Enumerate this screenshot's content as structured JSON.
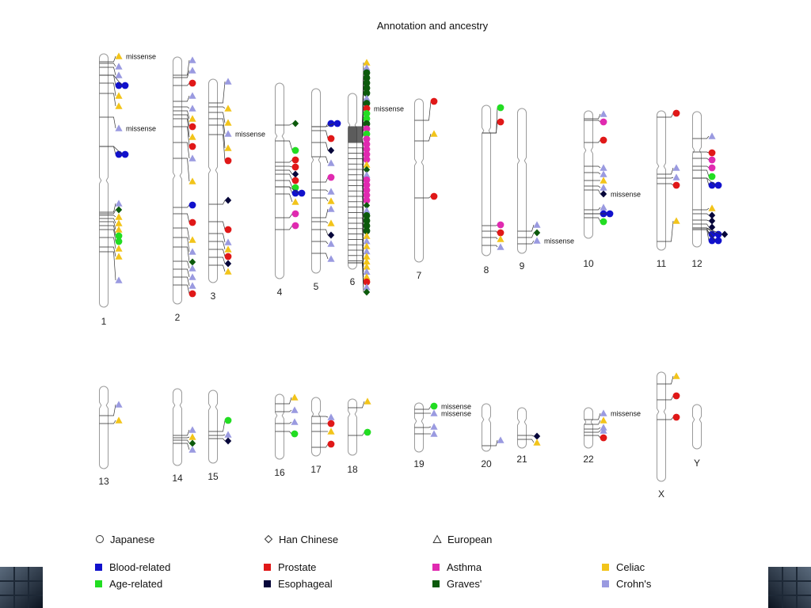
{
  "title": "Annotation and ancestry",
  "colors": {
    "blood": "#1111cc",
    "age": "#22dd22",
    "prostate": "#e01818",
    "esophageal": "#06063a",
    "asthma": "#e02ab0",
    "graves": "#0c5a0c",
    "celiac": "#f2c41a",
    "crohns": "#9a9ae0"
  },
  "annotation_text": "missense",
  "chromosomes": [
    {
      "label": "1"
    },
    {
      "label": "2"
    },
    {
      "label": "3"
    },
    {
      "label": "4"
    },
    {
      "label": "5"
    },
    {
      "label": "6"
    },
    {
      "label": "7"
    },
    {
      "label": "8"
    },
    {
      "label": "9"
    },
    {
      "label": "10"
    },
    {
      "label": "11"
    },
    {
      "label": "12"
    },
    {
      "label": "13"
    },
    {
      "label": "14"
    },
    {
      "label": "15"
    },
    {
      "label": "16"
    },
    {
      "label": "17"
    },
    {
      "label": "18"
    },
    {
      "label": "19"
    },
    {
      "label": "20"
    },
    {
      "label": "21"
    },
    {
      "label": "22"
    },
    {
      "label": "X"
    },
    {
      "label": "Y"
    }
  ],
  "legend": {
    "ancestry": [
      {
        "label": "Japanese",
        "shape": "circle"
      },
      {
        "label": "Han Chinese",
        "shape": "diamond"
      },
      {
        "label": "European",
        "shape": "triangle"
      }
    ],
    "traits": [
      {
        "label": "Blood-related",
        "color": "blood"
      },
      {
        "label": "Age-related",
        "color": "age"
      },
      {
        "label": "Prostate",
        "color": "prostate"
      },
      {
        "label": "Esophageal",
        "color": "esophageal"
      },
      {
        "label": "Asthma",
        "color": "asthma"
      },
      {
        "label": "Graves'",
        "color": "graves"
      },
      {
        "label": "Celiac",
        "color": "celiac"
      },
      {
        "label": "Crohn's",
        "color": "crohns"
      }
    ]
  }
}
